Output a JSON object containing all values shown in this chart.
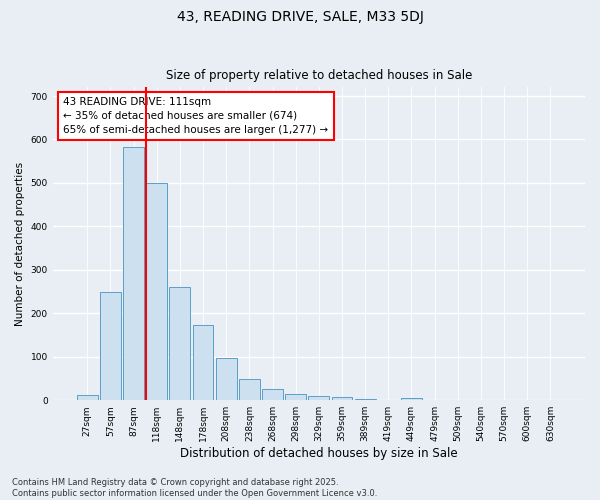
{
  "title1": "43, READING DRIVE, SALE, M33 5DJ",
  "title2": "Size of property relative to detached houses in Sale",
  "xlabel": "Distribution of detached houses by size in Sale",
  "ylabel": "Number of detached properties",
  "bar_labels": [
    "27sqm",
    "57sqm",
    "87sqm",
    "118sqm",
    "148sqm",
    "178sqm",
    "208sqm",
    "238sqm",
    "268sqm",
    "298sqm",
    "329sqm",
    "359sqm",
    "389sqm",
    "419sqm",
    "449sqm",
    "479sqm",
    "509sqm",
    "540sqm",
    "570sqm",
    "600sqm",
    "630sqm"
  ],
  "bar_values": [
    13,
    248,
    582,
    500,
    260,
    173,
    97,
    48,
    25,
    15,
    10,
    7,
    3,
    0,
    5,
    0,
    0,
    0,
    0,
    0,
    0
  ],
  "bar_color": "#cce0f0",
  "bar_edge_color": "#5a9ec8",
  "vline_color": "red",
  "annotation_text": "43 READING DRIVE: 111sqm\n← 35% of detached houses are smaller (674)\n65% of semi-detached houses are larger (1,277) →",
  "annotation_box_color": "white",
  "annotation_box_edge": "red",
  "ylim": [
    0,
    720
  ],
  "yticks": [
    0,
    100,
    200,
    300,
    400,
    500,
    600,
    700
  ],
  "background_color": "#e8eef4",
  "grid_color": "white",
  "footer": "Contains HM Land Registry data © Crown copyright and database right 2025.\nContains public sector information licensed under the Open Government Licence v3.0."
}
